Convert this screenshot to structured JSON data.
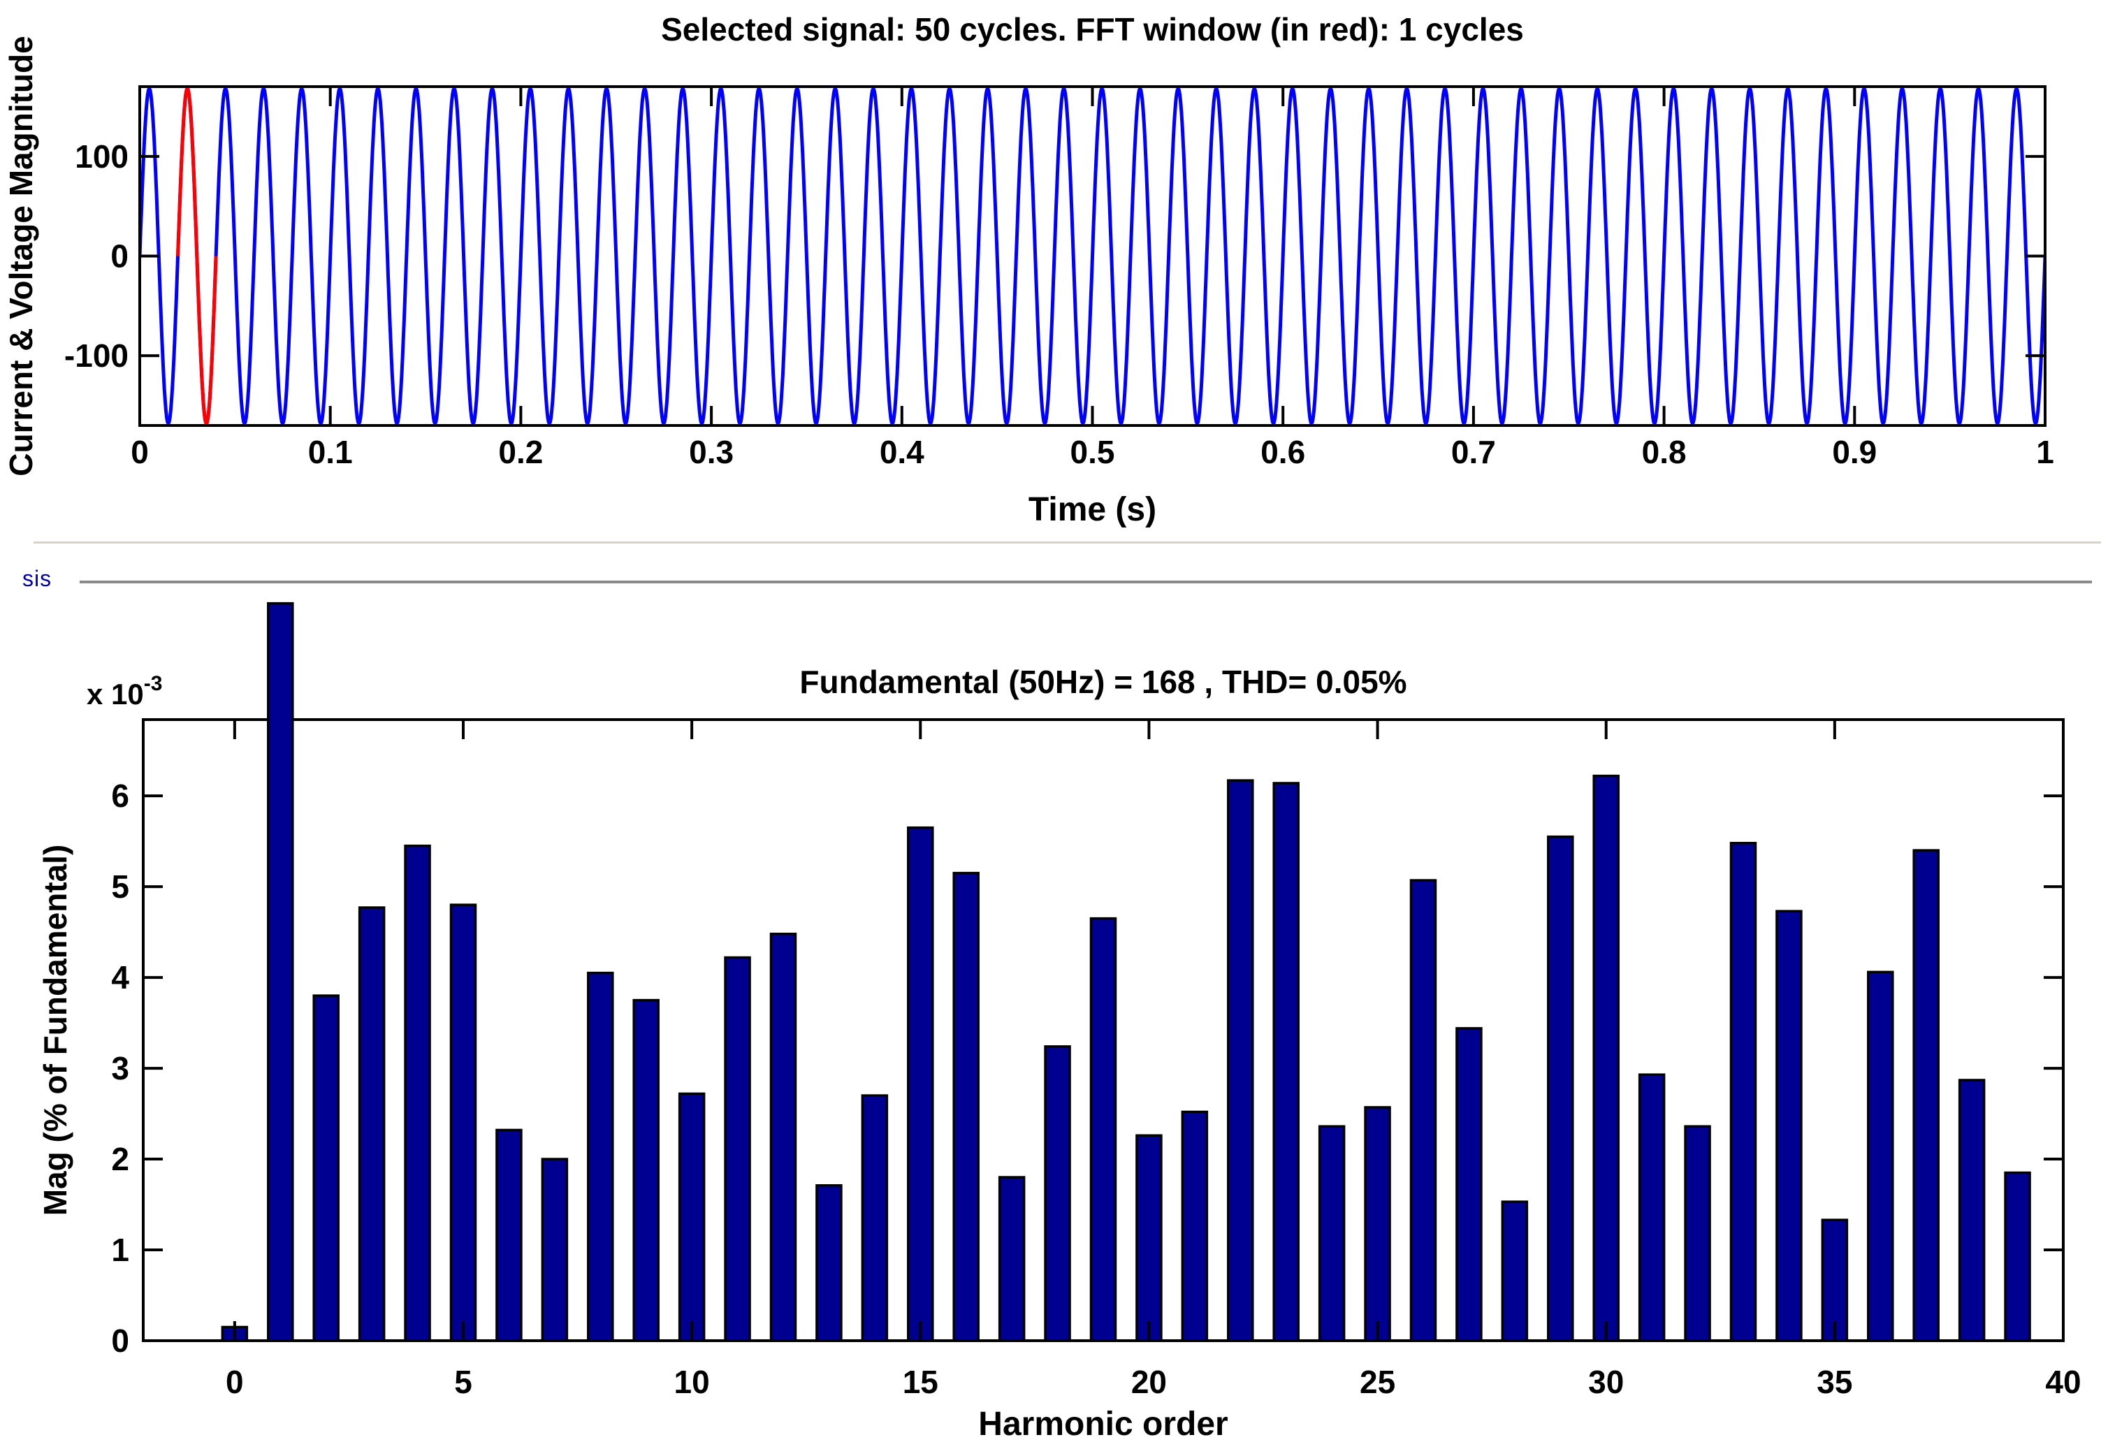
{
  "panel": {
    "label": "sis"
  },
  "colors": {
    "background": "#ffffff",
    "signal_line": "#0000ff",
    "fft_window_line": "#ff0000",
    "bar_fill": "#000090",
    "bar_edge": "#000000",
    "axis": "#000000",
    "text": "#000000",
    "panel_label": "#0000aa",
    "panel_rule": "#8a8a8a",
    "separator": "#d4d0c7"
  },
  "chart_data": [
    {
      "id": "selected-signal",
      "type": "line",
      "title": "Selected signal: 50 cycles. FFT window (in red): 1 cycles",
      "xlabel": "Time (s)",
      "ylabel": "Current & Voltage Magnitude",
      "xlim": [
        0,
        1
      ],
      "ylim": [
        -170,
        170
      ],
      "grid": false,
      "xticks": [
        {
          "v": 0,
          "label": "0"
        },
        {
          "v": 0.1,
          "label": "0.1"
        },
        {
          "v": 0.2,
          "label": "0.2"
        },
        {
          "v": 0.3,
          "label": "0.3"
        },
        {
          "v": 0.4,
          "label": "0.4"
        },
        {
          "v": 0.5,
          "label": "0.5"
        },
        {
          "v": 0.6,
          "label": "0.6"
        },
        {
          "v": 0.7,
          "label": "0.7"
        },
        {
          "v": 0.8,
          "label": "0.8"
        },
        {
          "v": 0.9,
          "label": "0.9"
        },
        {
          "v": 1,
          "label": "1"
        }
      ],
      "yticks": [
        {
          "v": 100,
          "label": "100"
        },
        {
          "v": 0,
          "label": "0"
        },
        {
          "v": -100,
          "label": "-100"
        }
      ],
      "signal": {
        "waveform": "sine",
        "amplitude": 168,
        "cycles": 50,
        "duration_s": 1,
        "starts_at_zero_rising": true
      },
      "fft_window": {
        "cycles": 1,
        "t_start": 0.02,
        "t_end": 0.04
      }
    },
    {
      "id": "fft-harmonics",
      "type": "bar",
      "title": "Fundamental (50Hz) = 168 , THD= 0.05%",
      "xlabel": "Harmonic order",
      "ylabel": "Mag (% of Fundamental)",
      "y_scale_exponent": {
        "prefix": "x 10",
        "exponent": "-3"
      },
      "xlim": [
        -2,
        40
      ],
      "ylim_e3": [
        0,
        6.84
      ],
      "grid": false,
      "legend": null,
      "xticks": [
        {
          "v": 0,
          "label": "0"
        },
        {
          "v": 5,
          "label": "5"
        },
        {
          "v": 10,
          "label": "10"
        },
        {
          "v": 15,
          "label": "15"
        },
        {
          "v": 20,
          "label": "20"
        },
        {
          "v": 25,
          "label": "25"
        },
        {
          "v": 30,
          "label": "30"
        },
        {
          "v": 35,
          "label": "35"
        },
        {
          "v": 40,
          "label": "40"
        }
      ],
      "yticks": [
        {
          "v": 0,
          "label": "0"
        },
        {
          "v": 1,
          "label": "1"
        },
        {
          "v": 2,
          "label": "2"
        },
        {
          "v": 3,
          "label": "3"
        },
        {
          "v": 4,
          "label": "4"
        },
        {
          "v": 5,
          "label": "5"
        },
        {
          "v": 6,
          "label": "6"
        }
      ],
      "categories": [
        0,
        1,
        2,
        3,
        4,
        5,
        6,
        7,
        8,
        9,
        10,
        11,
        12,
        13,
        14,
        15,
        16,
        17,
        18,
        19,
        20,
        21,
        22,
        23,
        24,
        25,
        26,
        27,
        28,
        29,
        30,
        31,
        32,
        33,
        34,
        35,
        36,
        37,
        38,
        39
      ],
      "values_e3": [
        0.15,
        null,
        3.8,
        4.77,
        5.45,
        4.8,
        2.32,
        2.0,
        4.05,
        3.75,
        2.72,
        4.22,
        4.48,
        1.71,
        2.7,
        5.65,
        5.15,
        1.8,
        3.24,
        4.65,
        2.26,
        2.52,
        6.17,
        6.14,
        2.36,
        2.57,
        5.07,
        3.44,
        1.53,
        5.55,
        6.22,
        2.93,
        2.36,
        5.48,
        4.73,
        1.33,
        4.06,
        5.4,
        2.87,
        1.85
      ],
      "clipped_bar": {
        "harmonic": 1,
        "note": "fundamental bar (100%) extends above the plot box, clipped near panel top",
        "drawn_top_e3": 8.12
      }
    }
  ]
}
